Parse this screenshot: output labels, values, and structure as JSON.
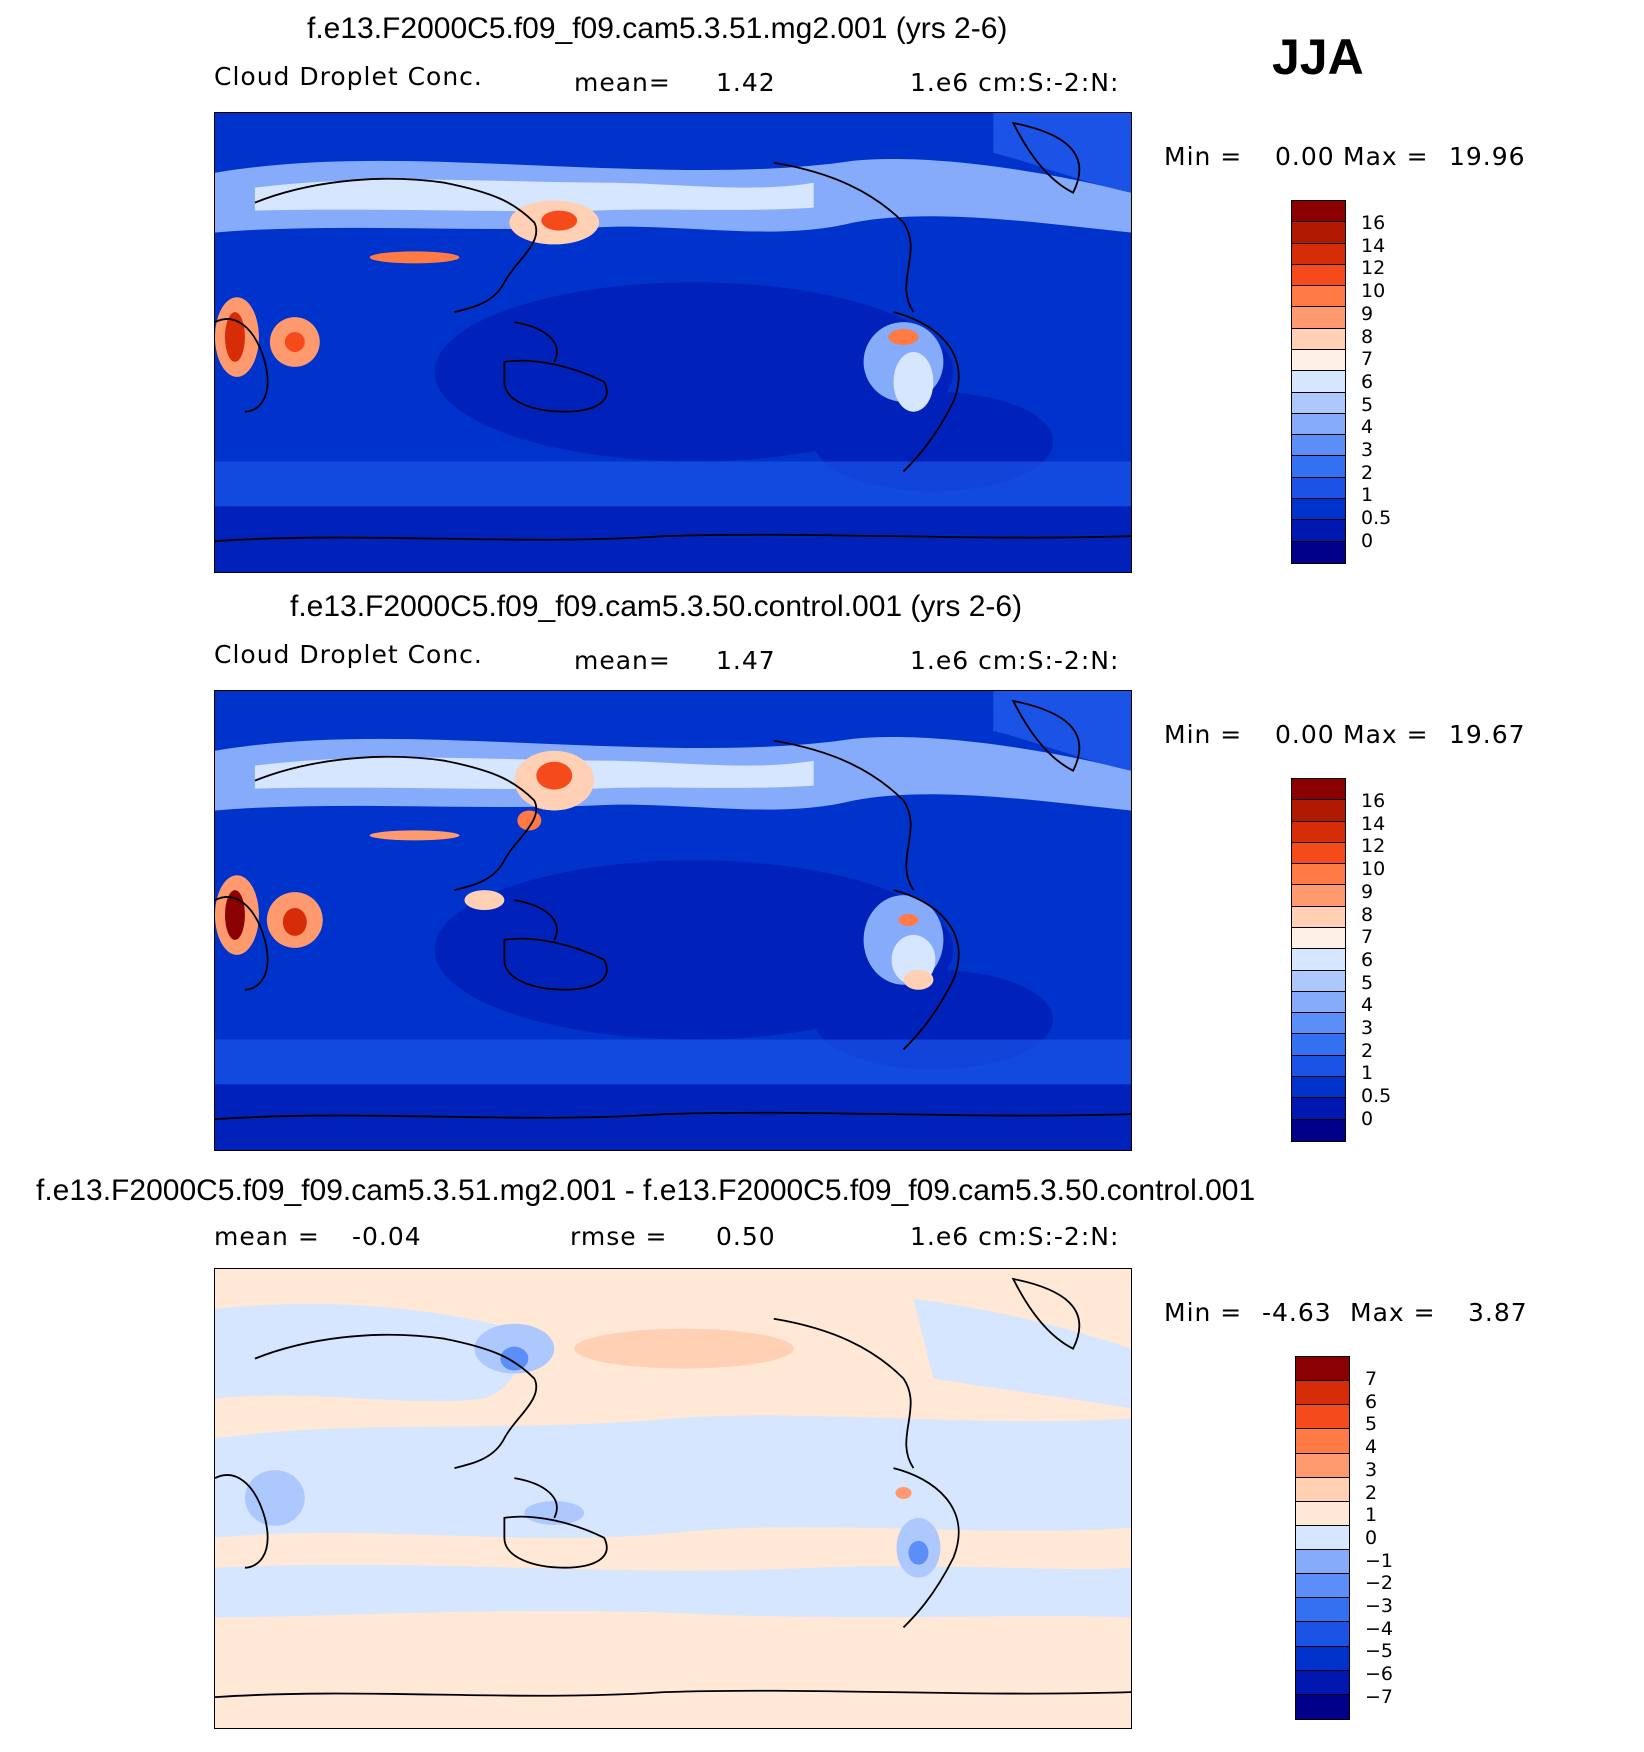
{
  "season": "JJA",
  "colors": {
    "abs_scale": [
      "#00008b",
      "#0018b0",
      "#0033cc",
      "#1a53e6",
      "#3370f2",
      "#5c8ef7",
      "#85abfa",
      "#adc8fc",
      "#d6e6fe",
      "#fff0e6",
      "#ffd0b4",
      "#ff9a6e",
      "#ff7a45",
      "#f54a1a",
      "#d62d08",
      "#b01a00",
      "#8b0000"
    ],
    "diff_scale": [
      "#00008b",
      "#0018b0",
      "#0033cc",
      "#1a53e6",
      "#3370f2",
      "#5c8ef7",
      "#85abfa",
      "#d6e6fe",
      "#ffe8d6",
      "#ffd0b4",
      "#ff9a6e",
      "#ff7a45",
      "#f54a1a",
      "#d62d08",
      "#8b0000"
    ],
    "land_outline": "#000000"
  },
  "panels": [
    {
      "id": "mg2",
      "title": "f.e13.F2000C5.f09_f09.cam5.3.51.mg2.001 (yrs 2-6)",
      "left_label": "Cloud Droplet Conc.",
      "center_label": "mean=",
      "center_value": "1.42",
      "units": "1.e6 cm:S:-2:N:",
      "min_label": "Min =",
      "min_value": "0.00",
      "max_label": "Max =",
      "max_value": "19.96",
      "colorbar_ticks": [
        "16",
        "14",
        "12",
        "10",
        "9",
        "8",
        "7",
        "6",
        "5",
        "4",
        "3",
        "2",
        "1",
        "0.5",
        "0"
      ]
    },
    {
      "id": "control",
      "title": "f.e13.F2000C5.f09_f09.cam5.3.50.control.001 (yrs 2-6)",
      "left_label": "Cloud Droplet Conc.",
      "center_label": "mean=",
      "center_value": "1.47",
      "units": "1.e6 cm:S:-2:N:",
      "min_label": "Min =",
      "min_value": "0.00",
      "max_label": "Max =",
      "max_value": "19.67",
      "colorbar_ticks": [
        "16",
        "14",
        "12",
        "10",
        "9",
        "8",
        "7",
        "6",
        "5",
        "4",
        "3",
        "2",
        "1",
        "0.5",
        "0"
      ]
    },
    {
      "id": "diff",
      "title": "f.e13.F2000C5.f09_f09.cam5.3.51.mg2.001 - f.e13.F2000C5.f09_f09.cam5.3.50.control.001",
      "left_label": "mean =",
      "left_value": "-0.04",
      "center_label": "rmse =",
      "center_value": "0.50",
      "units": "1.e6 cm:S:-2:N:",
      "min_label": "Min =",
      "min_value": "-4.63",
      "max_label": "Max =",
      "max_value": "3.87",
      "colorbar_ticks": [
        "7",
        "6",
        "5",
        "4",
        "3",
        "2",
        "1",
        "0",
        "-1",
        "-2",
        "-3",
        "-4",
        "-5",
        "-6",
        "-7"
      ]
    }
  ]
}
